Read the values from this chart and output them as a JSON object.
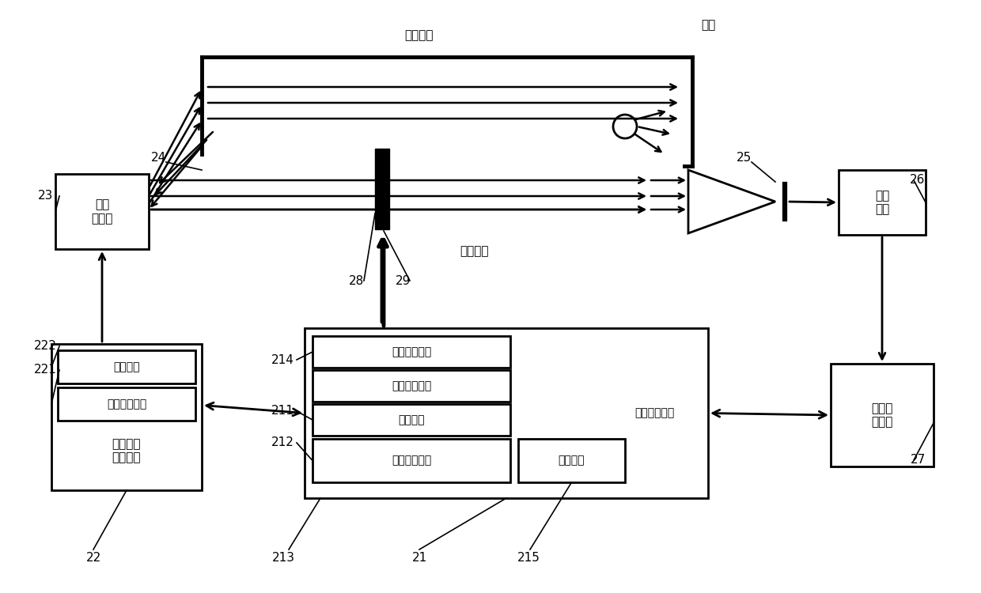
{
  "bg_color": "#ffffff",
  "labels": {
    "laser_diode": "激光\n二极管",
    "amplifier": "放大\n电路",
    "driver": "驱动电路",
    "dac": "数模转换电路",
    "dac_driver_main": "数模转换\n驱动电路",
    "adc": "模数转\n换电路",
    "cut_light": "切光控制电路",
    "mod_demod": "调制解调电路",
    "filter": "滤波电路",
    "signal_proc": "信号处理电路",
    "comm_port": "通信接口",
    "digital_unit_label": "数字处理单元",
    "work_path": "工作光路",
    "ref_path": "参考光路",
    "light_stop": "光阱"
  },
  "numbers": {
    "n21": [
      "21",
      530,
      705
    ],
    "n22": [
      "22",
      118,
      705
    ],
    "n23": [
      "23",
      58,
      248
    ],
    "n24": [
      "24",
      200,
      200
    ],
    "n25": [
      "25",
      940,
      200
    ],
    "n26": [
      "26",
      1160,
      228
    ],
    "n27": [
      "27",
      1160,
      582
    ],
    "n28": [
      "28",
      450,
      355
    ],
    "n29": [
      "29",
      510,
      355
    ],
    "n211": [
      "211",
      357,
      520
    ],
    "n212": [
      "212",
      357,
      560
    ],
    "n213": [
      "213",
      358,
      705
    ],
    "n214": [
      "214",
      357,
      455
    ],
    "n215": [
      "215",
      668,
      705
    ],
    "n221": [
      "221",
      57,
      468
    ],
    "n222": [
      "222",
      57,
      438
    ]
  }
}
